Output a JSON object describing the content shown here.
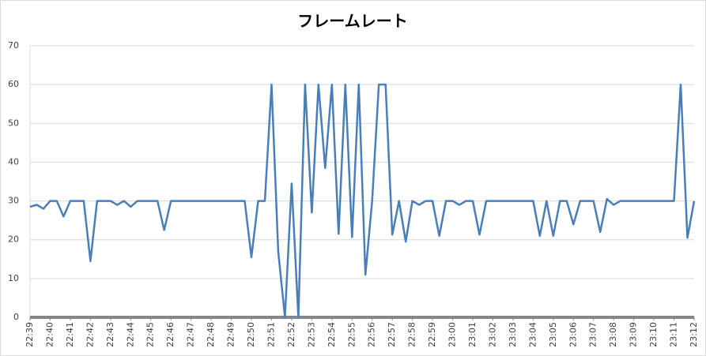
{
  "chart_data": {
    "type": "line",
    "title": "フレームレート",
    "categories": [
      "22:39",
      null,
      null,
      "22:40",
      null,
      null,
      "22:41",
      null,
      null,
      "22:42",
      null,
      null,
      "22:43",
      null,
      null,
      "22:44",
      null,
      null,
      "22:45",
      null,
      null,
      "22:46",
      null,
      null,
      "22:47",
      null,
      null,
      "22:48",
      null,
      null,
      "22:49",
      null,
      null,
      "22:50",
      null,
      null,
      "22:51",
      null,
      null,
      "22:52",
      null,
      null,
      "22:53",
      null,
      null,
      "22:54",
      null,
      null,
      "22:55",
      null,
      null,
      "22:56",
      null,
      null,
      "22:57",
      null,
      null,
      "22:58",
      null,
      null,
      "22:59",
      null,
      null,
      "23:00",
      null,
      null,
      "23:01",
      null,
      null,
      "23:02",
      null,
      null,
      "23:03",
      null,
      null,
      "23:04",
      null,
      null,
      "23:05",
      null,
      null,
      "23:06",
      null,
      null,
      "23:07",
      null,
      null,
      "23:08",
      null,
      null,
      "23:09",
      null,
      null,
      "23:10",
      null,
      null,
      "23:11",
      null,
      null,
      "23:12"
    ],
    "values": [
      28.5,
      29,
      28,
      30,
      30,
      26,
      30,
      30,
      30,
      14.5,
      30,
      30,
      30,
      29,
      30,
      28.5,
      30,
      30,
      30,
      30,
      22.5,
      30,
      30,
      30,
      30,
      30,
      30,
      30,
      30,
      30,
      30,
      30,
      30,
      15.5,
      30,
      30,
      60,
      17,
      0,
      34.5,
      0,
      60,
      27,
      60,
      38.5,
      60,
      21.5,
      60,
      20.7,
      60,
      11,
      30,
      60,
      60,
      21.3,
      30,
      19.5,
      30,
      29,
      30,
      30,
      21,
      30,
      30,
      29,
      30,
      30,
      21.3,
      30,
      30,
      30,
      30,
      30,
      30,
      30,
      30,
      21,
      30,
      21,
      30,
      30,
      24,
      30,
      30,
      30,
      22,
      30.5,
      29,
      30,
      30,
      30,
      30,
      30,
      30,
      30,
      30,
      30,
      60,
      20.5,
      30
    ],
    "color": "#4a7ebb",
    "ylim": [
      0,
      70
    ],
    "yticks": [
      0,
      10,
      20,
      30,
      40,
      50,
      60,
      70
    ],
    "grid": true
  }
}
